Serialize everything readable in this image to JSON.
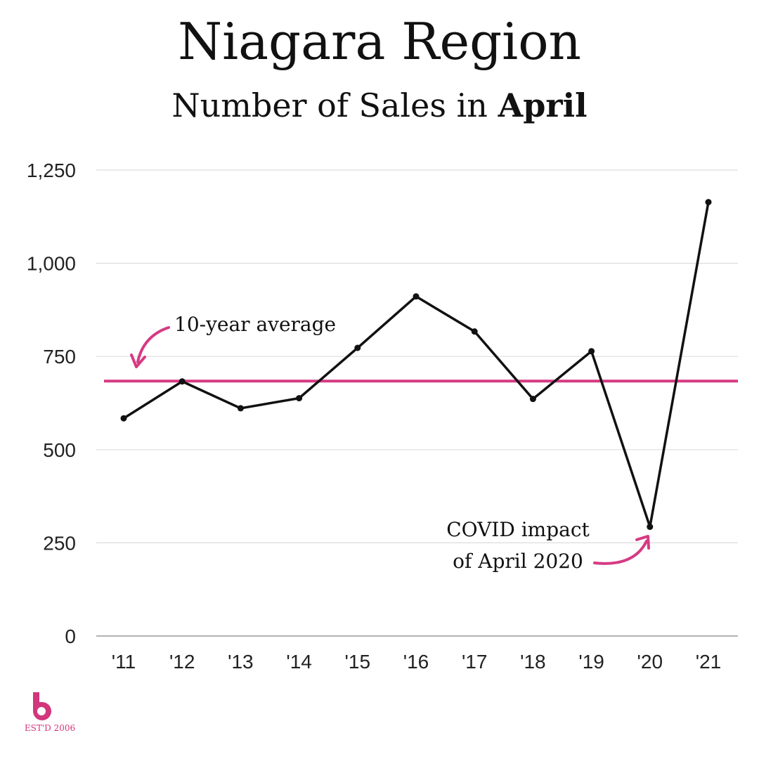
{
  "chart_data": {
    "type": "line",
    "title": "Niagara Region",
    "subtitle_prefix": "Number of Sales in ",
    "subtitle_bold": "April",
    "categories": [
      "'11",
      "'12",
      "'13",
      "'14",
      "'15",
      "'16",
      "'17",
      "'18",
      "'19",
      "'20",
      "'21"
    ],
    "series": [
      {
        "values": [
          584,
          683,
          611,
          638,
          773,
          911,
          817,
          636,
          764,
          293,
          1164
        ]
      }
    ],
    "ylim": [
      0,
      1250
    ],
    "yticks": [
      0,
      250,
      500,
      750,
      1000,
      1250
    ],
    "ytick_labels": [
      "0",
      "250",
      "500",
      "750",
      "1,000",
      "1,250"
    ],
    "grid": true,
    "reference_line": {
      "label": "10-year average",
      "value": 684
    },
    "annotation": {
      "line1": "COVID impact",
      "line2": "of April 2020",
      "target_category": "'20"
    },
    "colors": {
      "line": "#111111",
      "average": "#d63a83",
      "grid": "#dddddd",
      "accent": "#d63a83"
    }
  },
  "logo": {
    "tagline": "EST'D 2006"
  }
}
